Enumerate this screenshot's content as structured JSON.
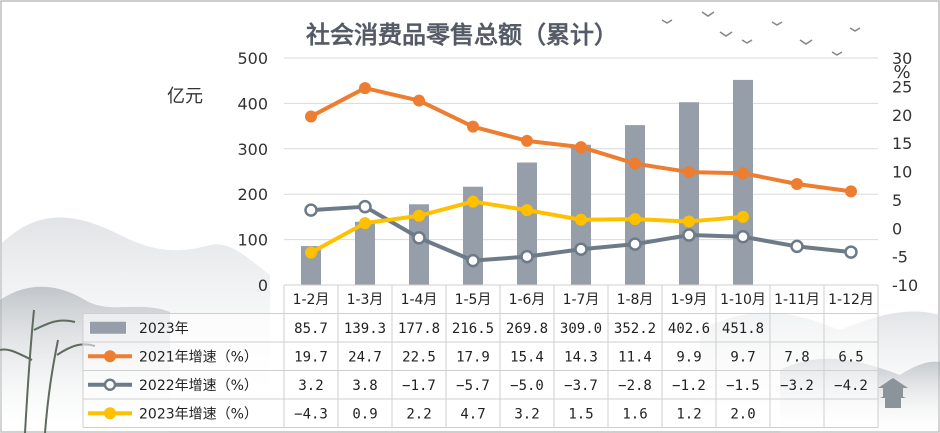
{
  "chart_data": {
    "type": "bar",
    "title": "社会消费品零售总额（累计）",
    "y_left_unit": "亿元",
    "y_right_unit": "%",
    "y_left_range": [
      0,
      500
    ],
    "y_left_ticks": [
      "0",
      "100",
      "200",
      "300",
      "400",
      "500"
    ],
    "y_right_range": [
      -10,
      30
    ],
    "y_right_ticks": [
      "-10",
      "-5",
      "0",
      "5",
      "10",
      "15",
      "20",
      "25",
      "30"
    ],
    "categories": [
      "1-2月",
      "1-3月",
      "1-4月",
      "1-5月",
      "1-6月",
      "1-7月",
      "1-8月",
      "1-9月",
      "1-10月",
      "1-11月",
      "1-12月"
    ],
    "grid": true,
    "bar_series": {
      "name": "2023年",
      "values": [
        85.7,
        139.3,
        177.8,
        216.5,
        269.8,
        309.0,
        352.2,
        402.6,
        451.8,
        null,
        null
      ],
      "labels": [
        "85.7",
        "139.3",
        "177.8",
        "216.5",
        "269.8",
        "309.0",
        "352.2",
        "402.6",
        "451.8",
        "",
        ""
      ],
      "color": "#959ea9"
    },
    "line_series": [
      {
        "name": "2021年增速（%）",
        "values": [
          19.7,
          24.7,
          22.5,
          17.9,
          15.4,
          14.3,
          11.4,
          9.9,
          9.7,
          7.8,
          6.5
        ],
        "labels": [
          "19.7",
          "24.7",
          "22.5",
          "17.9",
          "15.4",
          "14.3",
          "11.4",
          "9.9",
          "9.7",
          "7.8",
          "6.5"
        ],
        "color": "#ed7d31",
        "marker": "filled"
      },
      {
        "name": "2022年增速（%）",
        "values": [
          3.2,
          3.8,
          -1.7,
          -5.7,
          -5.0,
          -3.7,
          -2.8,
          -1.2,
          -1.5,
          -3.2,
          -4.2
        ],
        "labels": [
          "3.2",
          "3.8",
          "-1.7",
          "-5.7",
          "-5.0",
          "-3.7",
          "-2.8",
          "-1.2",
          "-1.5",
          "-3.2",
          "-4.2"
        ],
        "color": "#6d7b88",
        "marker": "hollow"
      },
      {
        "name": "2023年增速（%）",
        "values": [
          -4.3,
          0.9,
          2.2,
          4.7,
          3.2,
          1.5,
          1.6,
          1.2,
          2.0,
          null,
          null
        ],
        "labels": [
          "-4.3",
          "0.9",
          "2.2",
          "4.7",
          "3.2",
          "1.5",
          "1.6",
          "1.2",
          "2.0",
          "",
          ""
        ],
        "color": "#ffc000",
        "marker": "filled"
      }
    ]
  }
}
